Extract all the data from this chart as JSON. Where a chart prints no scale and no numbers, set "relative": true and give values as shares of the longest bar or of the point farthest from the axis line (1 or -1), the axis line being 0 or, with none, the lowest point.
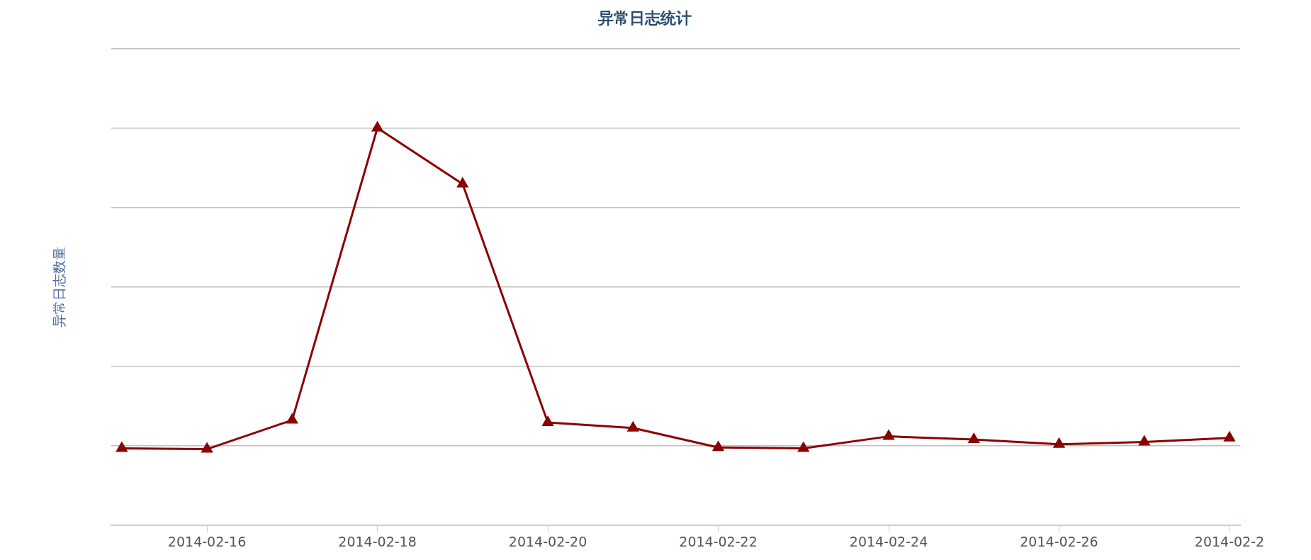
{
  "chart_data": {
    "type": "line",
    "title": "异常日志统计",
    "ylabel": "异常日志数量",
    "relative": true,
    "x": [
      "2014-02-15",
      "2014-02-16",
      "2014-02-17",
      "2014-02-18",
      "2014-02-19",
      "2014-02-20",
      "2014-02-21",
      "2014-02-22",
      "2014-02-23",
      "2014-02-24",
      "2014-02-25",
      "2014-02-26",
      "2014-02-27",
      "2014-02-28"
    ],
    "xlim": [
      "2014-02-14T21:00",
      "2014-02-28T03:00"
    ],
    "xticks": [
      {
        "value": "2014-02-16",
        "label": "2014-02-16"
      },
      {
        "value": "2014-02-18",
        "label": "2014-02-18"
      },
      {
        "value": "2014-02-20",
        "label": "2014-02-20"
      },
      {
        "value": "2014-02-22",
        "label": "2014-02-22"
      },
      {
        "value": "2014-02-24",
        "label": "2014-02-24"
      },
      {
        "value": "2014-02-26",
        "label": "2014-02-26"
      },
      {
        "value": "2014-02-28",
        "label": "2014-02-2"
      }
    ],
    "series": [
      {
        "color": "#8b0000",
        "values": [
          0.194,
          0.192,
          0.265,
          1,
          0.859,
          0.259,
          0.245,
          0.196,
          0.194,
          0.224,
          0.216,
          0.204,
          0.21,
          0.22
        ]
      }
    ],
    "grid": "y",
    "marker": "triangle",
    "line_style": "solid",
    "legend": false
  }
}
